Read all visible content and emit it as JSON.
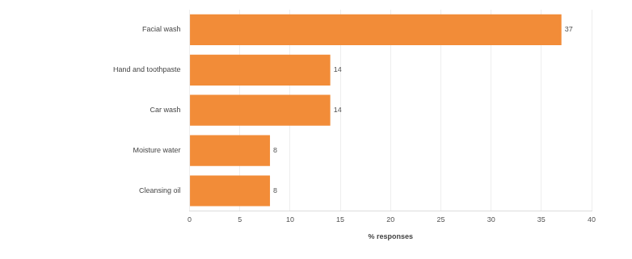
{
  "chart_data": {
    "type": "bar",
    "orientation": "horizontal",
    "categories": [
      "Facial wash",
      "Hand and toothpaste",
      "Car wash",
      "Moisture water",
      "Cleansing oil"
    ],
    "values": [
      37,
      14,
      14,
      8,
      8
    ],
    "color": "#f28c38",
    "x_label": "% responses",
    "xlim": [
      0,
      40
    ],
    "xticks": [
      0,
      5,
      10,
      15,
      20,
      25,
      30,
      35,
      40
    ],
    "grid": true,
    "data_labels": true
  }
}
